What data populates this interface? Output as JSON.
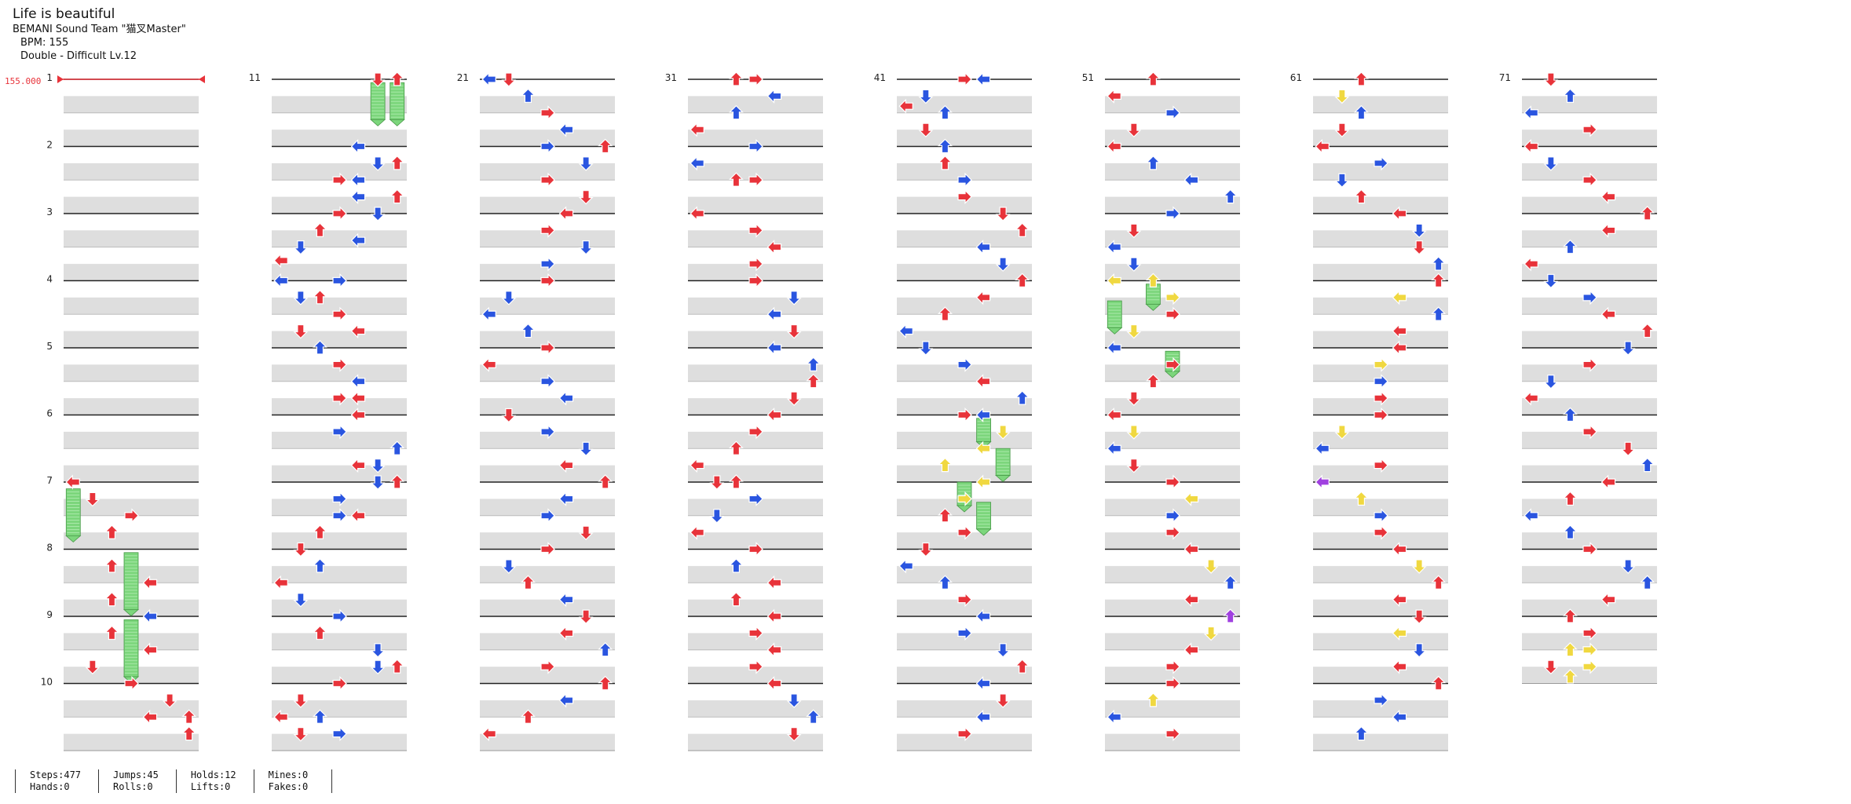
{
  "song": {
    "title": "Life is beautiful",
    "artist": "BEMANI Sound Team \"猫叉Master\"",
    "bpm_line": "BPM: 155",
    "difficulty_line": "Double - Difficult  Lv.12"
  },
  "bpm_marker": {
    "label": "155.000",
    "measure": 1
  },
  "measure_numbers": [
    1,
    11,
    21,
    31,
    41,
    51,
    61,
    71
  ],
  "total_measures": 79,
  "stats": {
    "steps": "Steps:477",
    "jumps": "Jumps:45",
    "holds": "Holds:12",
    "mines": "Mines:0",
    "hands": "Hands:0",
    "rolls": "Rolls:0",
    "lifts": "Lifts:0",
    "fakes": "Fakes:0"
  },
  "note_colors": {
    "quarter": "#e8333a",
    "eighth": "#2a55e0",
    "sixteenth": "#f0d840",
    "other": "#a040e0",
    "hold": "#7cd67c"
  },
  "notes": [
    [
      7.0,
      0,
      "r"
    ],
    [
      7.25,
      1,
      "r"
    ],
    [
      7.5,
      3,
      "r"
    ],
    [
      7.75,
      2,
      "r"
    ],
    [
      8.25,
      2,
      "r"
    ],
    [
      8.5,
      4,
      "r"
    ],
    [
      8.75,
      2,
      "r"
    ],
    [
      9.0,
      4,
      "b"
    ],
    [
      9.25,
      2,
      "r"
    ],
    [
      9.5,
      4,
      "r"
    ],
    [
      9.75,
      1,
      "r"
    ],
    [
      10.0,
      3,
      "r"
    ],
    [
      10.25,
      5,
      "r"
    ],
    [
      10.5,
      6,
      "r"
    ],
    [
      10.5,
      4,
      "r"
    ],
    [
      10.75,
      6,
      "r"
    ],
    [
      11.0,
      5,
      "r"
    ],
    [
      11.0,
      6,
      "r"
    ],
    [
      12.0,
      4,
      "b"
    ],
    [
      12.25,
      6,
      "r"
    ],
    [
      12.25,
      5,
      "b"
    ],
    [
      12.5,
      4,
      "b"
    ],
    [
      12.5,
      3,
      "r"
    ],
    [
      12.75,
      4,
      "b"
    ],
    [
      12.75,
      6,
      "r"
    ],
    [
      13.0,
      3,
      "r"
    ],
    [
      13.0,
      5,
      "b"
    ],
    [
      13.25,
      2,
      "r"
    ],
    [
      13.4,
      4,
      "b"
    ],
    [
      13.5,
      1,
      "b"
    ],
    [
      13.7,
      0,
      "r"
    ],
    [
      14.0,
      0,
      "b"
    ],
    [
      14.0,
      3,
      "b"
    ],
    [
      14.25,
      1,
      "b"
    ],
    [
      14.25,
      2,
      "r"
    ],
    [
      14.5,
      3,
      "r"
    ],
    [
      14.75,
      1,
      "r"
    ],
    [
      14.75,
      4,
      "r"
    ],
    [
      15.0,
      2,
      "b"
    ],
    [
      15.25,
      3,
      "r"
    ],
    [
      15.5,
      4,
      "b"
    ],
    [
      15.75,
      3,
      "r"
    ],
    [
      15.75,
      4,
      "r"
    ],
    [
      16.0,
      4,
      "r"
    ],
    [
      16.25,
      3,
      "b"
    ],
    [
      16.5,
      6,
      "b"
    ],
    [
      16.75,
      4,
      "r"
    ],
    [
      16.75,
      5,
      "b"
    ],
    [
      17.0,
      6,
      "r"
    ],
    [
      17.0,
      5,
      "b"
    ],
    [
      17.25,
      3,
      "b"
    ],
    [
      17.5,
      3,
      "b"
    ],
    [
      17.5,
      4,
      "r"
    ],
    [
      17.75,
      2,
      "r"
    ],
    [
      18.0,
      1,
      "r"
    ],
    [
      18.25,
      2,
      "b"
    ],
    [
      18.5,
      0,
      "r"
    ],
    [
      18.75,
      1,
      "b"
    ],
    [
      19.0,
      3,
      "b"
    ],
    [
      19.25,
      2,
      "r"
    ],
    [
      19.5,
      5,
      "b"
    ],
    [
      19.75,
      5,
      "b"
    ],
    [
      19.75,
      6,
      "r"
    ],
    [
      20.0,
      3,
      "r"
    ],
    [
      20.25,
      1,
      "r"
    ],
    [
      20.5,
      2,
      "b"
    ],
    [
      20.5,
      0,
      "r"
    ],
    [
      20.75,
      3,
      "b"
    ],
    [
      20.75,
      1,
      "r"
    ],
    [
      21.0,
      0,
      "b"
    ],
    [
      21.0,
      1,
      "r"
    ],
    [
      21.25,
      2,
      "b"
    ],
    [
      21.5,
      3,
      "r"
    ],
    [
      21.75,
      4,
      "b"
    ],
    [
      22.0,
      6,
      "r"
    ],
    [
      22.0,
      3,
      "b"
    ],
    [
      22.25,
      5,
      "b"
    ],
    [
      22.5,
      3,
      "r"
    ],
    [
      22.75,
      5,
      "r"
    ],
    [
      23.0,
      4,
      "r"
    ],
    [
      23.25,
      3,
      "r"
    ],
    [
      23.5,
      5,
      "b"
    ],
    [
      23.75,
      3,
      "b"
    ],
    [
      24.0,
      3,
      "r"
    ],
    [
      24.25,
      1,
      "b"
    ],
    [
      24.5,
      0,
      "b"
    ],
    [
      24.75,
      2,
      "b"
    ],
    [
      25.0,
      3,
      "r"
    ],
    [
      25.25,
      0,
      "r"
    ],
    [
      25.5,
      3,
      "b"
    ],
    [
      25.75,
      4,
      "b"
    ],
    [
      26.0,
      1,
      "r"
    ],
    [
      26.25,
      3,
      "b"
    ],
    [
      26.5,
      5,
      "b"
    ],
    [
      26.75,
      4,
      "r"
    ],
    [
      27.0,
      6,
      "r"
    ],
    [
      27.25,
      4,
      "b"
    ],
    [
      27.5,
      3,
      "b"
    ],
    [
      27.75,
      5,
      "r"
    ],
    [
      28.0,
      3,
      "r"
    ],
    [
      28.25,
      1,
      "b"
    ],
    [
      28.5,
      2,
      "r"
    ],
    [
      28.75,
      4,
      "b"
    ],
    [
      29.0,
      5,
      "r"
    ],
    [
      29.25,
      4,
      "r"
    ],
    [
      29.5,
      6,
      "b"
    ],
    [
      29.75,
      3,
      "r"
    ],
    [
      30.0,
      6,
      "r"
    ],
    [
      30.25,
      4,
      "b"
    ],
    [
      30.5,
      2,
      "r"
    ],
    [
      30.75,
      0,
      "r"
    ],
    [
      31.0,
      2,
      "r"
    ],
    [
      31.0,
      3,
      "r"
    ],
    [
      31.25,
      4,
      "b"
    ],
    [
      31.5,
      2,
      "b"
    ],
    [
      31.75,
      0,
      "r"
    ],
    [
      32.0,
      3,
      "b"
    ],
    [
      32.25,
      0,
      "b"
    ],
    [
      32.5,
      2,
      "r"
    ],
    [
      32.5,
      3,
      "r"
    ],
    [
      33.0,
      0,
      "r"
    ],
    [
      33.25,
      3,
      "r"
    ],
    [
      33.5,
      4,
      "r"
    ],
    [
      33.75,
      3,
      "r"
    ],
    [
      34.0,
      3,
      "r"
    ],
    [
      34.25,
      5,
      "b"
    ],
    [
      34.5,
      4,
      "b"
    ],
    [
      34.75,
      5,
      "r"
    ],
    [
      35.0,
      4,
      "b"
    ],
    [
      35.25,
      6,
      "b"
    ],
    [
      35.5,
      6,
      "r"
    ],
    [
      35.75,
      5,
      "r"
    ],
    [
      36.0,
      4,
      "r"
    ],
    [
      36.25,
      3,
      "r"
    ],
    [
      36.5,
      2,
      "r"
    ],
    [
      36.75,
      0,
      "r"
    ],
    [
      37.0,
      1,
      "r"
    ],
    [
      37.0,
      2,
      "r"
    ],
    [
      37.25,
      3,
      "b"
    ],
    [
      37.5,
      1,
      "b"
    ],
    [
      37.75,
      0,
      "r"
    ],
    [
      38.0,
      3,
      "r"
    ],
    [
      38.25,
      2,
      "b"
    ],
    [
      38.5,
      4,
      "r"
    ],
    [
      38.75,
      2,
      "r"
    ],
    [
      39.0,
      4,
      "r"
    ],
    [
      39.25,
      3,
      "r"
    ],
    [
      39.5,
      4,
      "r"
    ],
    [
      39.75,
      3,
      "r"
    ],
    [
      40.0,
      4,
      "r"
    ],
    [
      40.25,
      5,
      "b"
    ],
    [
      40.5,
      6,
      "b"
    ],
    [
      40.75,
      5,
      "r"
    ],
    [
      41.0,
      4,
      "b"
    ],
    [
      41.0,
      3,
      "r"
    ],
    [
      41.25,
      1,
      "b"
    ],
    [
      41.4,
      0,
      "r"
    ],
    [
      41.5,
      2,
      "b"
    ],
    [
      41.75,
      1,
      "r"
    ],
    [
      42.0,
      2,
      "b"
    ],
    [
      42.25,
      2,
      "r"
    ],
    [
      42.5,
      3,
      "b"
    ],
    [
      42.75,
      3,
      "r"
    ],
    [
      43.0,
      5,
      "r"
    ],
    [
      43.25,
      6,
      "r"
    ],
    [
      43.5,
      4,
      "b"
    ],
    [
      43.75,
      5,
      "b"
    ],
    [
      44.0,
      6,
      "r"
    ],
    [
      44.25,
      4,
      "r"
    ],
    [
      44.5,
      2,
      "r"
    ],
    [
      44.75,
      0,
      "b"
    ],
    [
      45.0,
      1,
      "b"
    ],
    [
      45.25,
      3,
      "b"
    ],
    [
      45.5,
      4,
      "r"
    ],
    [
      45.75,
      6,
      "b"
    ],
    [
      46.0,
      3,
      "r"
    ],
    [
      46.0,
      4,
      "b"
    ],
    [
      46.25,
      5,
      "y"
    ],
    [
      46.5,
      4,
      "y"
    ],
    [
      46.75,
      2,
      "y"
    ],
    [
      47.0,
      4,
      "y"
    ],
    [
      47.25,
      3,
      "y"
    ],
    [
      47.5,
      2,
      "r"
    ],
    [
      47.75,
      3,
      "r"
    ],
    [
      48.0,
      1,
      "r"
    ],
    [
      48.25,
      0,
      "b"
    ],
    [
      48.5,
      2,
      "b"
    ],
    [
      48.75,
      3,
      "r"
    ],
    [
      49.0,
      4,
      "b"
    ],
    [
      49.25,
      3,
      "b"
    ],
    [
      49.5,
      5,
      "b"
    ],
    [
      49.75,
      6,
      "r"
    ],
    [
      50.0,
      4,
      "b"
    ],
    [
      50.25,
      5,
      "r"
    ],
    [
      50.5,
      4,
      "b"
    ],
    [
      50.75,
      3,
      "r"
    ],
    [
      51.0,
      2,
      "r"
    ],
    [
      51.25,
      0,
      "r"
    ],
    [
      51.5,
      3,
      "b"
    ],
    [
      51.75,
      1,
      "r"
    ],
    [
      52.0,
      0,
      "r"
    ],
    [
      52.25,
      2,
      "b"
    ],
    [
      52.5,
      4,
      "b"
    ],
    [
      52.75,
      6,
      "b"
    ],
    [
      53.0,
      3,
      "b"
    ],
    [
      53.25,
      1,
      "r"
    ],
    [
      53.5,
      0,
      "b"
    ],
    [
      53.75,
      1,
      "b"
    ],
    [
      54.0,
      0,
      "y"
    ],
    [
      54.0,
      2,
      "y"
    ],
    [
      54.25,
      3,
      "y"
    ],
    [
      54.5,
      3,
      "r"
    ],
    [
      54.75,
      1,
      "y"
    ],
    [
      55.0,
      0,
      "b"
    ],
    [
      55.25,
      3,
      "r"
    ],
    [
      55.5,
      2,
      "r"
    ],
    [
      55.75,
      1,
      "r"
    ],
    [
      56.0,
      0,
      "r"
    ],
    [
      56.25,
      1,
      "y"
    ],
    [
      56.5,
      0,
      "b"
    ],
    [
      56.75,
      1,
      "r"
    ],
    [
      57.0,
      3,
      "r"
    ],
    [
      57.25,
      4,
      "y"
    ],
    [
      57.5,
      3,
      "b"
    ],
    [
      57.75,
      3,
      "r"
    ],
    [
      58.0,
      4,
      "r"
    ],
    [
      58.25,
      5,
      "y"
    ],
    [
      58.5,
      6,
      "b"
    ],
    [
      58.75,
      4,
      "r"
    ],
    [
      59.0,
      6,
      "p"
    ],
    [
      59.25,
      5,
      "y"
    ],
    [
      59.5,
      4,
      "r"
    ],
    [
      59.75,
      3,
      "r"
    ],
    [
      60.0,
      3,
      "r"
    ],
    [
      60.25,
      2,
      "y"
    ],
    [
      60.5,
      0,
      "b"
    ],
    [
      60.75,
      3,
      "r"
    ],
    [
      61.0,
      2,
      "r"
    ],
    [
      61.25,
      1,
      "y"
    ],
    [
      61.5,
      2,
      "b"
    ],
    [
      61.75,
      1,
      "r"
    ],
    [
      62.0,
      0,
      "r"
    ],
    [
      62.25,
      3,
      "b"
    ],
    [
      62.5,
      1,
      "b"
    ],
    [
      62.75,
      2,
      "r"
    ],
    [
      63.0,
      4,
      "r"
    ],
    [
      63.25,
      5,
      "b"
    ],
    [
      63.5,
      5,
      "r"
    ],
    [
      63.75,
      6,
      "b"
    ],
    [
      64.0,
      6,
      "r"
    ],
    [
      64.25,
      4,
      "y"
    ],
    [
      64.5,
      6,
      "b"
    ],
    [
      64.75,
      4,
      "r"
    ],
    [
      65.0,
      4,
      "r"
    ],
    [
      65.25,
      3,
      "y"
    ],
    [
      65.5,
      3,
      "b"
    ],
    [
      65.75,
      3,
      "r"
    ],
    [
      66.0,
      3,
      "r"
    ],
    [
      66.25,
      1,
      "y"
    ],
    [
      66.5,
      0,
      "b"
    ],
    [
      66.75,
      3,
      "r"
    ],
    [
      67.0,
      0,
      "p"
    ],
    [
      67.25,
      2,
      "y"
    ],
    [
      67.5,
      3,
      "b"
    ],
    [
      67.75,
      3,
      "r"
    ],
    [
      68.0,
      4,
      "r"
    ],
    [
      68.25,
      5,
      "y"
    ],
    [
      68.5,
      6,
      "r"
    ],
    [
      68.75,
      4,
      "r"
    ],
    [
      69.0,
      5,
      "r"
    ],
    [
      69.25,
      4,
      "y"
    ],
    [
      69.5,
      5,
      "b"
    ],
    [
      69.75,
      4,
      "r"
    ],
    [
      70.0,
      6,
      "r"
    ],
    [
      70.25,
      3,
      "b"
    ],
    [
      70.5,
      4,
      "b"
    ],
    [
      70.75,
      2,
      "b"
    ],
    [
      71.0,
      1,
      "r"
    ],
    [
      71.25,
      2,
      "b"
    ],
    [
      71.5,
      0,
      "b"
    ],
    [
      71.75,
      3,
      "r"
    ],
    [
      72.0,
      0,
      "r"
    ],
    [
      72.25,
      1,
      "b"
    ],
    [
      72.5,
      3,
      "r"
    ],
    [
      72.75,
      4,
      "r"
    ],
    [
      73.0,
      6,
      "r"
    ],
    [
      73.25,
      4,
      "r"
    ],
    [
      73.5,
      2,
      "b"
    ],
    [
      73.75,
      0,
      "r"
    ],
    [
      74.0,
      1,
      "b"
    ],
    [
      74.25,
      3,
      "b"
    ],
    [
      74.5,
      4,
      "r"
    ],
    [
      74.75,
      6,
      "r"
    ],
    [
      75.0,
      5,
      "b"
    ],
    [
      75.25,
      3,
      "r"
    ],
    [
      75.5,
      1,
      "b"
    ],
    [
      75.75,
      0,
      "r"
    ],
    [
      76.0,
      2,
      "b"
    ],
    [
      76.25,
      3,
      "r"
    ],
    [
      76.5,
      5,
      "r"
    ],
    [
      76.75,
      6,
      "b"
    ],
    [
      77.0,
      4,
      "r"
    ],
    [
      77.25,
      2,
      "r"
    ],
    [
      77.5,
      0,
      "b"
    ],
    [
      77.75,
      2,
      "b"
    ],
    [
      78.0,
      3,
      "r"
    ],
    [
      78.25,
      5,
      "b"
    ],
    [
      78.5,
      6,
      "b"
    ],
    [
      78.75,
      4,
      "r"
    ],
    [
      79.0,
      2,
      "r"
    ],
    [
      79.25,
      3,
      "r"
    ],
    [
      79.5,
      2,
      "y"
    ],
    [
      79.5,
      3,
      "y"
    ],
    [
      79.75,
      1,
      "r"
    ],
    [
      79.75,
      3,
      "y"
    ],
    [
      79.9,
      2,
      "y"
    ]
  ],
  "holds": [
    [
      7.1,
      7.8,
      0
    ],
    [
      8.05,
      8.9,
      3
    ],
    [
      9.05,
      9.9,
      3
    ],
    [
      11.05,
      11.6,
      5
    ],
    [
      11.05,
      11.6,
      6
    ],
    [
      46.05,
      46.4,
      4
    ],
    [
      46.5,
      46.9,
      5
    ],
    [
      47.0,
      47.35,
      3
    ],
    [
      47.3,
      47.7,
      4
    ],
    [
      54.05,
      54.35,
      2
    ],
    [
      54.3,
      54.7,
      0
    ],
    [
      55.05,
      55.35,
      3
    ]
  ]
}
